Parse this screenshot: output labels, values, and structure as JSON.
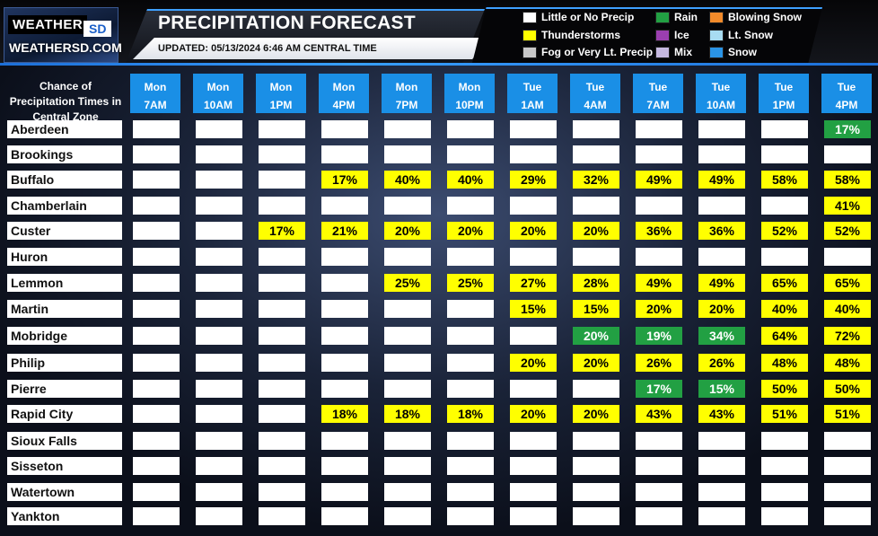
{
  "header": {
    "logo_top": "WEATHER",
    "logo_sd": "SD",
    "logo_site": "WEATHERSD.COM",
    "title": "PRECIPITATION FORECAST",
    "updated": "UPDATED: 05/13/2024 6:46 AM CENTRAL TIME"
  },
  "legend": [
    {
      "label": "Little or No Precip",
      "color": "#ffffff"
    },
    {
      "label": "Thunderstorms",
      "color": "#ffff00"
    },
    {
      "label": "Fog or Very Lt. Precip",
      "color": "#c8c8c8"
    },
    {
      "label": "Rain",
      "color": "#22a043"
    },
    {
      "label": "Ice",
      "color": "#9b3fb0"
    },
    {
      "label": "Mix",
      "color": "#c6b9e0"
    },
    {
      "label": "Blowing Snow",
      "color": "#f28a2a"
    },
    {
      "label": "Lt. Snow",
      "color": "#a8dcf2"
    },
    {
      "label": "Snow",
      "color": "#2a94e6"
    }
  ],
  "table": {
    "row_header_title": "Chance of Precipitation Times in Central Zone",
    "columns": [
      {
        "day": "Mon",
        "time": "7AM"
      },
      {
        "day": "Mon",
        "time": "10AM"
      },
      {
        "day": "Mon",
        "time": "1PM"
      },
      {
        "day": "Mon",
        "time": "4PM"
      },
      {
        "day": "Mon",
        "time": "7PM"
      },
      {
        "day": "Mon",
        "time": "10PM"
      },
      {
        "day": "Tue",
        "time": "1AM"
      },
      {
        "day": "Tue",
        "time": "4AM"
      },
      {
        "day": "Tue",
        "time": "7AM"
      },
      {
        "day": "Tue",
        "time": "10AM"
      },
      {
        "day": "Tue",
        "time": "1PM"
      },
      {
        "day": "Tue",
        "time": "4PM"
      }
    ],
    "rows": [
      {
        "town": "Aberdeen",
        "cells": [
          [
            "",
            ""
          ],
          [
            "",
            ""
          ],
          [
            "",
            ""
          ],
          [
            "",
            ""
          ],
          [
            "",
            ""
          ],
          [
            "",
            ""
          ],
          [
            "",
            ""
          ],
          [
            "",
            ""
          ],
          [
            "",
            ""
          ],
          [
            "",
            ""
          ],
          [
            "",
            ""
          ],
          [
            "17%",
            "rain"
          ]
        ]
      },
      {
        "town": "Brookings",
        "cells": [
          [
            "",
            ""
          ],
          [
            "",
            ""
          ],
          [
            "",
            ""
          ],
          [
            "",
            ""
          ],
          [
            "",
            ""
          ],
          [
            "",
            ""
          ],
          [
            "",
            ""
          ],
          [
            "",
            ""
          ],
          [
            "",
            ""
          ],
          [
            "",
            ""
          ],
          [
            "",
            ""
          ],
          [
            "",
            ""
          ]
        ]
      },
      {
        "town": "Buffalo",
        "cells": [
          [
            "",
            ""
          ],
          [
            "",
            ""
          ],
          [
            "",
            ""
          ],
          [
            "17%",
            "ts"
          ],
          [
            "40%",
            "ts"
          ],
          [
            "40%",
            "ts"
          ],
          [
            "29%",
            "ts"
          ],
          [
            "32%",
            "ts"
          ],
          [
            "49%",
            "ts"
          ],
          [
            "49%",
            "ts"
          ],
          [
            "58%",
            "ts"
          ],
          [
            "58%",
            "ts"
          ]
        ]
      },
      {
        "town": "Chamberlain",
        "cells": [
          [
            "",
            ""
          ],
          [
            "",
            ""
          ],
          [
            "",
            ""
          ],
          [
            "",
            ""
          ],
          [
            "",
            ""
          ],
          [
            "",
            ""
          ],
          [
            "",
            ""
          ],
          [
            "",
            ""
          ],
          [
            "",
            ""
          ],
          [
            "",
            ""
          ],
          [
            "",
            ""
          ],
          [
            "41%",
            "ts"
          ]
        ]
      },
      {
        "town": "Custer",
        "cells": [
          [
            "",
            ""
          ],
          [
            "",
            ""
          ],
          [
            "17%",
            "ts"
          ],
          [
            "21%",
            "ts"
          ],
          [
            "20%",
            "ts"
          ],
          [
            "20%",
            "ts"
          ],
          [
            "20%",
            "ts"
          ],
          [
            "20%",
            "ts"
          ],
          [
            "36%",
            "ts"
          ],
          [
            "36%",
            "ts"
          ],
          [
            "52%",
            "ts"
          ],
          [
            "52%",
            "ts"
          ]
        ]
      },
      {
        "town": "Huron",
        "cells": [
          [
            "",
            ""
          ],
          [
            "",
            ""
          ],
          [
            "",
            ""
          ],
          [
            "",
            ""
          ],
          [
            "",
            ""
          ],
          [
            "",
            ""
          ],
          [
            "",
            ""
          ],
          [
            "",
            ""
          ],
          [
            "",
            ""
          ],
          [
            "",
            ""
          ],
          [
            "",
            ""
          ],
          [
            "",
            ""
          ]
        ]
      },
      {
        "town": "Lemmon",
        "cells": [
          [
            "",
            ""
          ],
          [
            "",
            ""
          ],
          [
            "",
            ""
          ],
          [
            "",
            ""
          ],
          [
            "25%",
            "ts"
          ],
          [
            "25%",
            "ts"
          ],
          [
            "27%",
            "ts"
          ],
          [
            "28%",
            "ts"
          ],
          [
            "49%",
            "ts"
          ],
          [
            "49%",
            "ts"
          ],
          [
            "65%",
            "ts"
          ],
          [
            "65%",
            "ts"
          ]
        ]
      },
      {
        "town": "Martin",
        "cells": [
          [
            "",
            ""
          ],
          [
            "",
            ""
          ],
          [
            "",
            ""
          ],
          [
            "",
            ""
          ],
          [
            "",
            ""
          ],
          [
            "",
            ""
          ],
          [
            "15%",
            "ts"
          ],
          [
            "15%",
            "ts"
          ],
          [
            "20%",
            "ts"
          ],
          [
            "20%",
            "ts"
          ],
          [
            "40%",
            "ts"
          ],
          [
            "40%",
            "ts"
          ]
        ]
      },
      {
        "town": "Mobridge",
        "cells": [
          [
            "",
            ""
          ],
          [
            "",
            ""
          ],
          [
            "",
            ""
          ],
          [
            "",
            ""
          ],
          [
            "",
            ""
          ],
          [
            "",
            ""
          ],
          [
            "",
            ""
          ],
          [
            "20%",
            "rain"
          ],
          [
            "19%",
            "rain"
          ],
          [
            "34%",
            "rain"
          ],
          [
            "64%",
            "ts"
          ],
          [
            "72%",
            "ts"
          ]
        ]
      },
      {
        "town": "Philip",
        "cells": [
          [
            "",
            ""
          ],
          [
            "",
            ""
          ],
          [
            "",
            ""
          ],
          [
            "",
            ""
          ],
          [
            "",
            ""
          ],
          [
            "",
            ""
          ],
          [
            "20%",
            "ts"
          ],
          [
            "20%",
            "ts"
          ],
          [
            "26%",
            "ts"
          ],
          [
            "26%",
            "ts"
          ],
          [
            "48%",
            "ts"
          ],
          [
            "48%",
            "ts"
          ]
        ]
      },
      {
        "town": "Pierre",
        "cells": [
          [
            "",
            ""
          ],
          [
            "",
            ""
          ],
          [
            "",
            ""
          ],
          [
            "",
            ""
          ],
          [
            "",
            ""
          ],
          [
            "",
            ""
          ],
          [
            "",
            ""
          ],
          [
            "",
            ""
          ],
          [
            "17%",
            "rain"
          ],
          [
            "15%",
            "rain"
          ],
          [
            "50%",
            "ts"
          ],
          [
            "50%",
            "ts"
          ]
        ]
      },
      {
        "town": "Rapid City",
        "cells": [
          [
            "",
            ""
          ],
          [
            "",
            ""
          ],
          [
            "",
            ""
          ],
          [
            "18%",
            "ts"
          ],
          [
            "18%",
            "ts"
          ],
          [
            "18%",
            "ts"
          ],
          [
            "20%",
            "ts"
          ],
          [
            "20%",
            "ts"
          ],
          [
            "43%",
            "ts"
          ],
          [
            "43%",
            "ts"
          ],
          [
            "51%",
            "ts"
          ],
          [
            "51%",
            "ts"
          ]
        ]
      },
      {
        "town": "Sioux Falls",
        "cells": [
          [
            "",
            ""
          ],
          [
            "",
            ""
          ],
          [
            "",
            ""
          ],
          [
            "",
            ""
          ],
          [
            "",
            ""
          ],
          [
            "",
            ""
          ],
          [
            "",
            ""
          ],
          [
            "",
            ""
          ],
          [
            "",
            ""
          ],
          [
            "",
            ""
          ],
          [
            "",
            ""
          ],
          [
            "",
            ""
          ]
        ]
      },
      {
        "town": "Sisseton",
        "cells": [
          [
            "",
            ""
          ],
          [
            "",
            ""
          ],
          [
            "",
            ""
          ],
          [
            "",
            ""
          ],
          [
            "",
            ""
          ],
          [
            "",
            ""
          ],
          [
            "",
            ""
          ],
          [
            "",
            ""
          ],
          [
            "",
            ""
          ],
          [
            "",
            ""
          ],
          [
            "",
            ""
          ],
          [
            "",
            ""
          ]
        ]
      },
      {
        "town": "Watertown",
        "cells": [
          [
            "",
            ""
          ],
          [
            "",
            ""
          ],
          [
            "",
            ""
          ],
          [
            "",
            ""
          ],
          [
            "",
            ""
          ],
          [
            "",
            ""
          ],
          [
            "",
            ""
          ],
          [
            "",
            ""
          ],
          [
            "",
            ""
          ],
          [
            "",
            ""
          ],
          [
            "",
            ""
          ],
          [
            "",
            ""
          ]
        ]
      },
      {
        "town": "Yankton",
        "cells": [
          [
            "",
            ""
          ],
          [
            "",
            ""
          ],
          [
            "",
            ""
          ],
          [
            "",
            ""
          ],
          [
            "",
            ""
          ],
          [
            "",
            ""
          ],
          [
            "",
            ""
          ],
          [
            "",
            ""
          ],
          [
            "",
            ""
          ],
          [
            "",
            ""
          ],
          [
            "",
            ""
          ],
          [
            "",
            ""
          ]
        ]
      }
    ]
  }
}
